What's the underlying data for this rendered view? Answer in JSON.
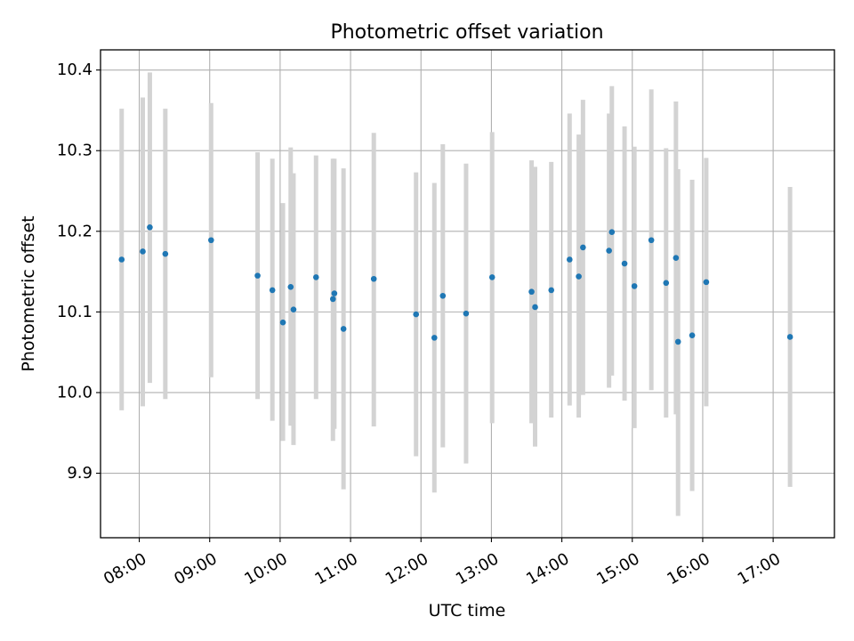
{
  "chart_data": {
    "type": "scatter",
    "title": "Photometric offset variation",
    "xlabel": "UTC time",
    "ylabel": "Photometric offset",
    "xlim": [
      7.45,
      17.87
    ],
    "ylim": [
      9.82,
      10.425
    ],
    "grid": true,
    "x_ticks": [
      {
        "value": 8,
        "label": "08:00"
      },
      {
        "value": 9,
        "label": "09:00"
      },
      {
        "value": 10,
        "label": "10:00"
      },
      {
        "value": 11,
        "label": "11:00"
      },
      {
        "value": 12,
        "label": "12:00"
      },
      {
        "value": 13,
        "label": "13:00"
      },
      {
        "value": 14,
        "label": "14:00"
      },
      {
        "value": 15,
        "label": "15:00"
      },
      {
        "value": 16,
        "label": "16:00"
      },
      {
        "value": 17,
        "label": "17:00"
      }
    ],
    "y_ticks": [
      {
        "value": 9.9,
        "label": "9.9"
      },
      {
        "value": 10.0,
        "label": "10.0"
      },
      {
        "value": 10.1,
        "label": "10.1"
      },
      {
        "value": 10.2,
        "label": "10.2"
      },
      {
        "value": 10.3,
        "label": "10.3"
      },
      {
        "value": 10.4,
        "label": "10.4"
      }
    ],
    "colors": {
      "marker": "#1f77b4",
      "errorbar": "#d3d3d3"
    },
    "points": [
      {
        "x": 7.75,
        "y": 10.165,
        "ylow": 9.978,
        "yhigh": 10.352
      },
      {
        "x": 8.05,
        "y": 10.175,
        "ylow": 9.983,
        "yhigh": 10.366
      },
      {
        "x": 8.15,
        "y": 10.205,
        "ylow": 10.012,
        "yhigh": 10.397
      },
      {
        "x": 8.37,
        "y": 10.172,
        "ylow": 9.992,
        "yhigh": 10.352
      },
      {
        "x": 9.02,
        "y": 10.189,
        "ylow": 10.019,
        "yhigh": 10.359
      },
      {
        "x": 9.68,
        "y": 10.145,
        "ylow": 9.992,
        "yhigh": 10.298
      },
      {
        "x": 9.89,
        "y": 10.127,
        "ylow": 9.965,
        "yhigh": 10.29
      },
      {
        "x": 10.04,
        "y": 10.087,
        "ylow": 9.94,
        "yhigh": 10.235
      },
      {
        "x": 10.15,
        "y": 10.131,
        "ylow": 9.959,
        "yhigh": 10.304
      },
      {
        "x": 10.19,
        "y": 10.103,
        "ylow": 9.935,
        "yhigh": 10.272
      },
      {
        "x": 10.51,
        "y": 10.143,
        "ylow": 9.992,
        "yhigh": 10.294
      },
      {
        "x": 10.75,
        "y": 10.116,
        "ylow": 9.94,
        "yhigh": 10.29
      },
      {
        "x": 10.77,
        "y": 10.123,
        "ylow": 9.955,
        "yhigh": 10.29
      },
      {
        "x": 10.9,
        "y": 10.079,
        "ylow": 9.88,
        "yhigh": 10.278
      },
      {
        "x": 11.33,
        "y": 10.141,
        "ylow": 9.958,
        "yhigh": 10.322
      },
      {
        "x": 11.93,
        "y": 10.097,
        "ylow": 9.921,
        "yhigh": 10.273
      },
      {
        "x": 12.19,
        "y": 10.068,
        "ylow": 9.876,
        "yhigh": 10.26
      },
      {
        "x": 12.31,
        "y": 10.12,
        "ylow": 9.932,
        "yhigh": 10.308
      },
      {
        "x": 12.64,
        "y": 10.098,
        "ylow": 9.912,
        "yhigh": 10.284
      },
      {
        "x": 13.01,
        "y": 10.143,
        "ylow": 9.962,
        "yhigh": 10.323
      },
      {
        "x": 13.57,
        "y": 10.125,
        "ylow": 9.962,
        "yhigh": 10.288
      },
      {
        "x": 13.62,
        "y": 10.106,
        "ylow": 9.933,
        "yhigh": 10.28
      },
      {
        "x": 13.85,
        "y": 10.127,
        "ylow": 9.969,
        "yhigh": 10.286
      },
      {
        "x": 14.11,
        "y": 10.165,
        "ylow": 9.984,
        "yhigh": 10.346
      },
      {
        "x": 14.24,
        "y": 10.144,
        "ylow": 9.969,
        "yhigh": 10.32
      },
      {
        "x": 14.3,
        "y": 10.18,
        "ylow": 9.997,
        "yhigh": 10.363
      },
      {
        "x": 14.67,
        "y": 10.176,
        "ylow": 10.006,
        "yhigh": 10.346
      },
      {
        "x": 14.71,
        "y": 10.199,
        "ylow": 10.021,
        "yhigh": 10.38
      },
      {
        "x": 14.89,
        "y": 10.16,
        "ylow": 9.99,
        "yhigh": 10.33
      },
      {
        "x": 15.03,
        "y": 10.132,
        "ylow": 9.956,
        "yhigh": 10.305
      },
      {
        "x": 15.27,
        "y": 10.189,
        "ylow": 10.003,
        "yhigh": 10.376
      },
      {
        "x": 15.48,
        "y": 10.136,
        "ylow": 9.969,
        "yhigh": 10.303
      },
      {
        "x": 15.62,
        "y": 10.167,
        "ylow": 9.973,
        "yhigh": 10.361
      },
      {
        "x": 15.65,
        "y": 10.063,
        "ylow": 9.847,
        "yhigh": 10.277
      },
      {
        "x": 15.85,
        "y": 10.071,
        "ylow": 9.878,
        "yhigh": 10.264
      },
      {
        "x": 16.05,
        "y": 10.137,
        "ylow": 9.983,
        "yhigh": 10.291
      },
      {
        "x": 17.24,
        "y": 10.069,
        "ylow": 9.883,
        "yhigh": 10.255
      }
    ]
  }
}
